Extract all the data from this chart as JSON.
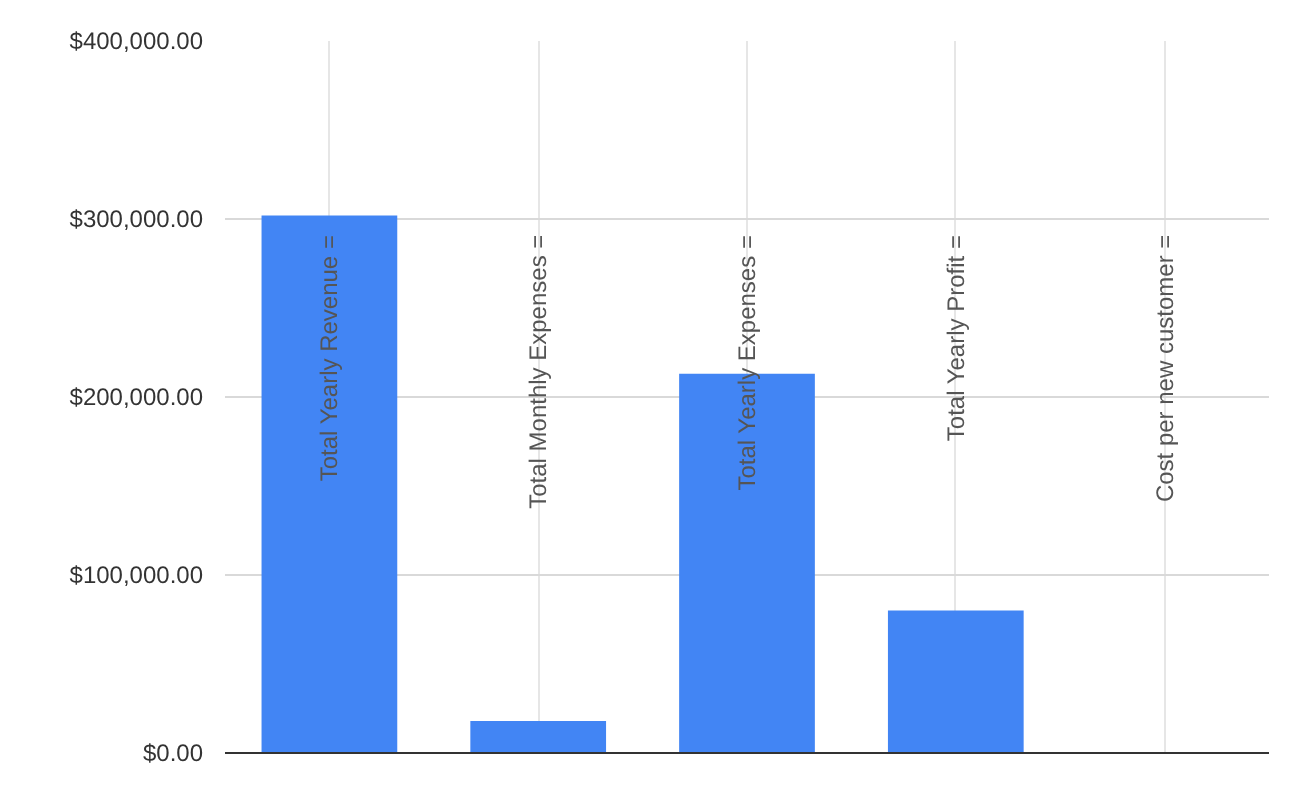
{
  "chart_data": {
    "type": "bar",
    "categories": [
      "Total Yearly Revenue =",
      "Total Monthly Expenses =",
      "Total Yearly Expenses =",
      "Total Yearly Profit =",
      "Cost per new customer ="
    ],
    "values": [
      302000,
      18000,
      213000,
      80000,
      0
    ],
    "color": "#4285f4",
    "ylim": [
      0,
      400000
    ],
    "yticks": [
      {
        "value": 0,
        "label": "$0.00"
      },
      {
        "value": 100000,
        "label": "$100,000.00"
      },
      {
        "value": 200000,
        "label": "$200,000.00"
      },
      {
        "value": 300000,
        "label": "$300,000.00"
      },
      {
        "value": 400000,
        "label": "$400,000.00"
      }
    ],
    "grid": true
  }
}
